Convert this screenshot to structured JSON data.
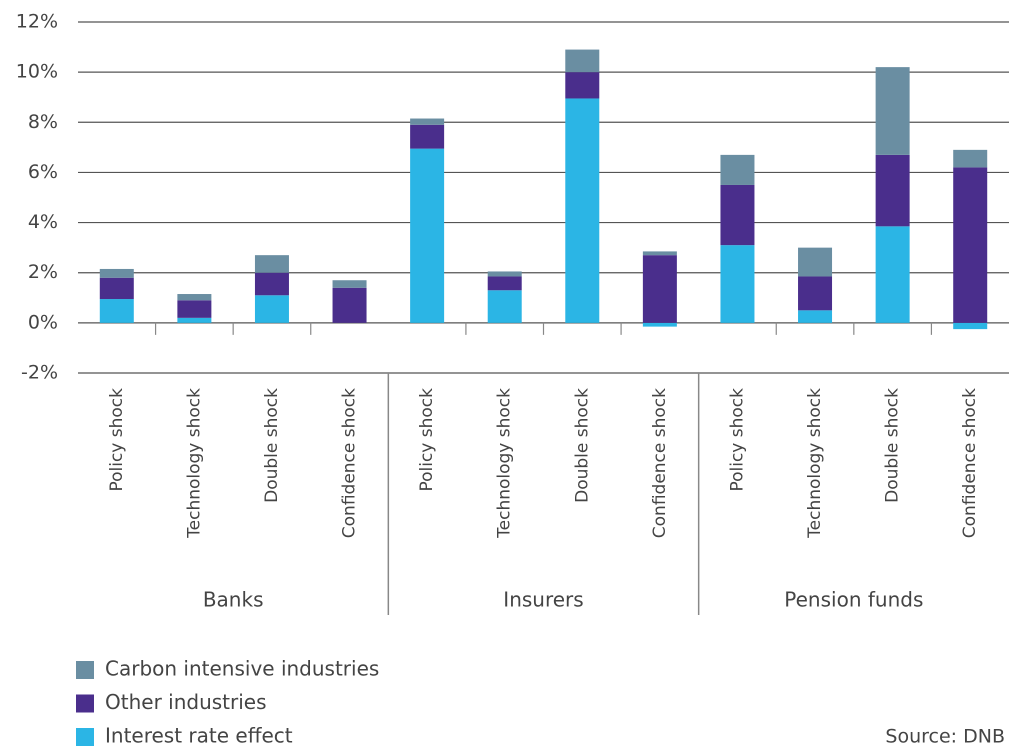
{
  "chart_data": {
    "type": "stacked_bar",
    "categories": [
      "Policy shock",
      "Technology shock",
      "Double shock",
      "Confidence shock",
      "Policy shock",
      "Technology shock",
      "Double shock",
      "Confidence shock",
      "Policy shock",
      "Technology shock",
      "Double shock",
      "Confidence shock"
    ],
    "groups": [
      "Banks",
      "Insurers",
      "Pension funds"
    ],
    "series": [
      {
        "name": "Interest rate effect",
        "color": "#2bb5e5",
        "values": [
          0.95,
          0.2,
          1.1,
          0,
          6.95,
          1.3,
          8.95,
          -0.15,
          3.1,
          0.5,
          3.85,
          -0.25
        ]
      },
      {
        "name": "Other industries",
        "color": "#4a2e8c",
        "values": [
          0.85,
          0.7,
          0.9,
          1.4,
          0.95,
          0.55,
          1.05,
          2.7,
          2.4,
          1.35,
          2.85,
          6.2
        ]
      },
      {
        "name": "Carbon intensive industries",
        "color": "#6a8ea2",
        "values": [
          0.35,
          0.25,
          0.7,
          0.3,
          0.25,
          0.2,
          0.9,
          0.15,
          1.2,
          1.15,
          3.5,
          0.7
        ]
      }
    ],
    "ylim": [
      -2,
      12
    ],
    "yticks": [
      {
        "value": -2,
        "label": "-2%"
      },
      {
        "value": 0,
        "label": "0%"
      },
      {
        "value": 2,
        "label": "2%"
      },
      {
        "value": 4,
        "label": "4%"
      },
      {
        "value": 6,
        "label": "6%"
      },
      {
        "value": 8,
        "label": "8%"
      },
      {
        "value": 10,
        "label": "10%"
      },
      {
        "value": 12,
        "label": "12%"
      }
    ],
    "grid": true,
    "source": "Source: DNB"
  }
}
